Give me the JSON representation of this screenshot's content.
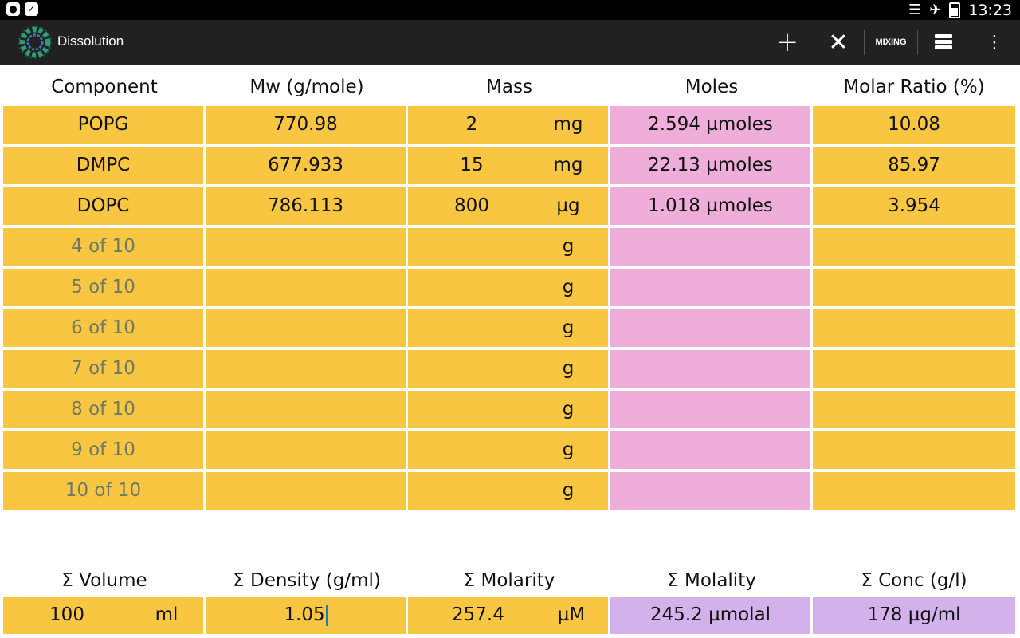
{
  "status_bar": {
    "time": "13:23",
    "left_icons": [
      "chat-notification-icon",
      "checkbox-notification-icon"
    ],
    "right_icons": [
      "wifi-icon",
      "airplane-mode-icon",
      "battery-icon"
    ]
  },
  "action_bar": {
    "title": "Dissolution",
    "mixing_label": "MIXING",
    "actions": [
      "plus-icon",
      "close-icon",
      "storage-icon",
      "overflow-menu-icon"
    ]
  },
  "table": {
    "headers": [
      "Component",
      "Mw (g/mole)",
      "Mass",
      "Moles",
      "Molar Ratio (%)"
    ],
    "rows": [
      {
        "component": "POPG",
        "mw": "770.98",
        "mass": "2",
        "unit": "mg",
        "moles": "2.594 µmoles",
        "ratio": "10.08",
        "placeholder": false
      },
      {
        "component": "DMPC",
        "mw": "677.933",
        "mass": "15",
        "unit": "mg",
        "moles": "22.13 µmoles",
        "ratio": "85.97",
        "placeholder": false
      },
      {
        "component": "DOPC",
        "mw": "786.113",
        "mass": "800",
        "unit": "µg",
        "moles": "1.018 µmoles",
        "ratio": "3.954",
        "placeholder": false
      },
      {
        "component": "4 of 10",
        "mw": "",
        "mass": "",
        "unit": "g",
        "moles": "",
        "ratio": "",
        "placeholder": true
      },
      {
        "component": "5 of 10",
        "mw": "",
        "mass": "",
        "unit": "g",
        "moles": "",
        "ratio": "",
        "placeholder": true
      },
      {
        "component": "6 of 10",
        "mw": "",
        "mass": "",
        "unit": "g",
        "moles": "",
        "ratio": "",
        "placeholder": true
      },
      {
        "component": "7 of 10",
        "mw": "",
        "mass": "",
        "unit": "g",
        "moles": "",
        "ratio": "",
        "placeholder": true
      },
      {
        "component": "8 of 10",
        "mw": "",
        "mass": "",
        "unit": "g",
        "moles": "",
        "ratio": "",
        "placeholder": true
      },
      {
        "component": "9 of 10",
        "mw": "",
        "mass": "",
        "unit": "g",
        "moles": "",
        "ratio": "",
        "placeholder": true
      },
      {
        "component": "10 of 10",
        "mw": "",
        "mass": "",
        "unit": "g",
        "moles": "",
        "ratio": "",
        "placeholder": true
      }
    ]
  },
  "summary": {
    "headers": [
      "Σ Volume",
      "Σ Density (g/ml)",
      "Σ Molarity",
      "Σ Molality",
      "Σ Conc (g/l)"
    ],
    "volume_value": "100",
    "volume_unit": "ml",
    "density": "1.05",
    "molarity_value": "257.4",
    "molarity_unit": "µM",
    "molality": "245.2 µmolal",
    "conc": "178 µg/ml"
  },
  "colors": {
    "input_cell": "#f9c642",
    "moles_cell": "#efaed9",
    "summary_result_cell": "#d3b1ea",
    "placeholder_text": "#6e7a64",
    "action_bar": "#212121",
    "caret": "#1a7fb5"
  }
}
